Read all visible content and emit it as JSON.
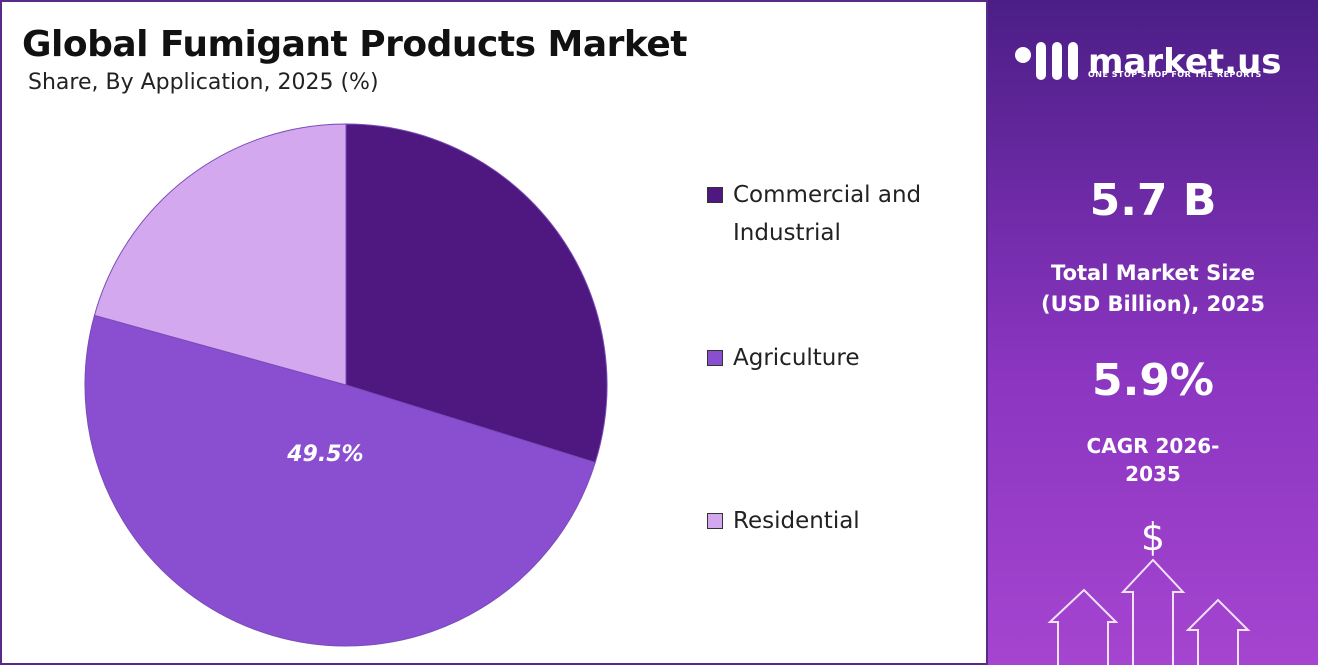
{
  "chart_data": {
    "type": "pie",
    "title": "Global Fumigant Products Market",
    "subtitle": "Share, By Application, 2025 (%)",
    "categories": [
      "Commercial and Industrial",
      "Agriculture",
      "Residential"
    ],
    "values": [
      29.8,
      49.5,
      20.7
    ],
    "value_labels": [
      null,
      "49.5%",
      null
    ],
    "colors": [
      "#4f1780",
      "#8a4fd0",
      "#d4a8ef"
    ]
  },
  "panel": {
    "logo": "market.us",
    "tagline": "ONE STOP SHOP FOR THE REPORTS",
    "market_size": "5.7 B",
    "market_size_label": "Total Market Size (USD Billion), 2025",
    "cagr": "5.9%",
    "cagr_label": "CAGR 2026-2035",
    "icon": "$"
  }
}
